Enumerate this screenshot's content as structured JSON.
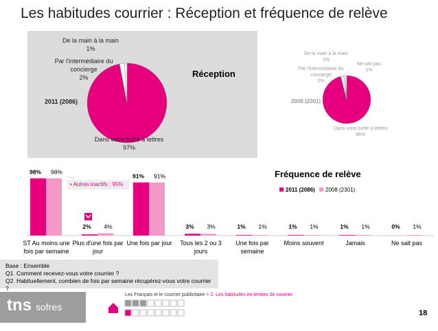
{
  "title": "Les habitudes courrier : Réception et fréquence de relève",
  "chart_data": [
    {
      "type": "pie",
      "title": "Réception",
      "name": "2011 (2086)",
      "categories": [
        "Dans votre boîte à lettres",
        "Par l'intermédiaire du concierge",
        "De la main à la main"
      ],
      "values": [
        97,
        2,
        1
      ],
      "value_labels": [
        "97%",
        "2%",
        "1%"
      ],
      "colors": [
        "#e6007e",
        "#ffffff",
        "#ffffff"
      ]
    },
    {
      "type": "pie",
      "name": "2008 (2301)",
      "categories": [
        "Dans votre boîte à lettres",
        "Par l'intermédiaire du concierge",
        "De la main à la main",
        "Ne sait pas"
      ],
      "values": [
        96,
        2,
        1,
        1
      ],
      "value_labels": [
        "96%",
        "2%",
        "1%",
        "1%"
      ],
      "colors": [
        "#e6007e",
        "#ffffff",
        "#ffffff",
        "#ffffff"
      ]
    },
    {
      "type": "bar",
      "title": "Fréquence de relève",
      "categories": [
        "ST Au moins une fois par semaine",
        "Plus d'une fois par jour",
        "Une fois par jour",
        "Tous les 2 ou 3 jours",
        "Une fois par semaine",
        "Moins souvent",
        "Jamais",
        "Ne sait pas"
      ],
      "series": [
        {
          "name": "2011 (2086)",
          "color": "#e6007e",
          "values": [
            98,
            2,
            91,
            3,
            1,
            1,
            1,
            0
          ],
          "value_labels": [
            "98%",
            "2%",
            "91%",
            "3%",
            "1%",
            "1%",
            "1%",
            "0%"
          ]
        },
        {
          "name": "2008 (2301)",
          "color": "#f59ac8",
          "values": [
            98,
            4,
            91,
            3,
            1,
            1,
            1,
            1
          ],
          "value_labels": [
            "98%",
            "4%",
            "91%",
            "3%",
            "1%",
            "1%",
            "1%",
            "1%"
          ]
        }
      ],
      "annotation": "• Autres inactifs : 95%",
      "ylim": [
        0,
        100
      ]
    }
  ],
  "notes": [
    "Base : Ensemble",
    "Q1. Comment recevez-vous votre courrier ?",
    "Q2. Habituellement, combien de fois par semaine récupérez-vous votre courrier ?"
  ],
  "footer": {
    "study": "Les Français et le courrier publicitaire",
    "section": "> 2. Les habitudes en termes de courrier",
    "page": "18",
    "logo": "tns",
    "logo_sub": "sofres"
  }
}
